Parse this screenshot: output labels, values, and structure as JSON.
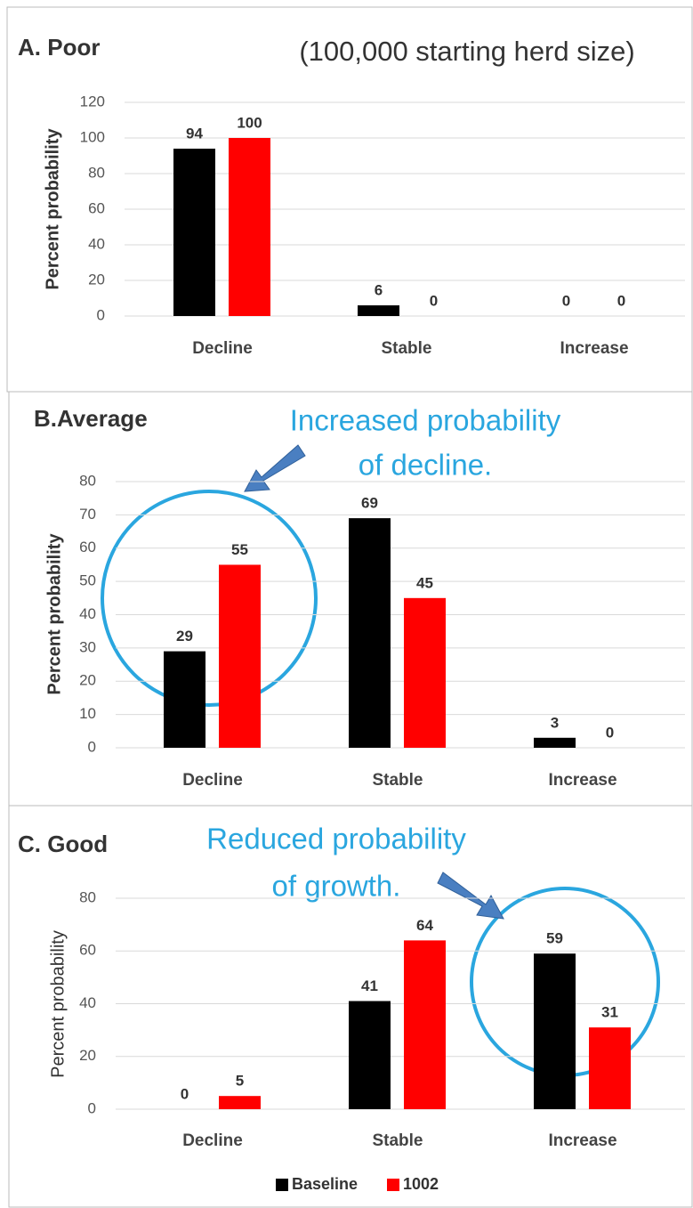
{
  "chart_data": [
    {
      "type": "bar",
      "title": "A. Poor",
      "subtitle": "(100,000 starting herd size)",
      "y_label": "Percent probability",
      "categories": [
        "Decline",
        "Stable",
        "Increase"
      ],
      "series": [
        {
          "color": "#000000",
          "values": [
            94,
            6,
            0
          ]
        },
        {
          "color": "#ff0000",
          "values": [
            100,
            0,
            0
          ]
        }
      ],
      "ylim": [
        0,
        120
      ],
      "yticks": [
        0,
        20,
        40,
        60,
        80,
        100,
        120
      ],
      "grid": true
    },
    {
      "type": "bar",
      "title": "B.Average",
      "annotation": [
        "Increased probability",
        "of decline."
      ],
      "y_label": "Percent probability",
      "categories": [
        "Decline",
        "Stable",
        "Increase"
      ],
      "series": [
        {
          "color": "#000000",
          "values": [
            29,
            69,
            3
          ]
        },
        {
          "color": "#ff0000",
          "values": [
            55,
            45,
            0
          ]
        }
      ],
      "ylim": [
        0,
        80
      ],
      "yticks": [
        0,
        10,
        20,
        30,
        40,
        50,
        60,
        70,
        80
      ],
      "grid": true
    },
    {
      "type": "bar",
      "title": "C. Good",
      "annotation": [
        "Reduced probability",
        "of growth."
      ],
      "y_label": "Percent probability",
      "categories": [
        "Decline",
        "Stable",
        "Increase"
      ],
      "series": [
        {
          "name": "Baseline",
          "color": "#000000",
          "values": [
            0,
            41,
            59
          ]
        },
        {
          "name": "1002",
          "color": "#ff0000",
          "values": [
            5,
            64,
            31
          ]
        }
      ],
      "ylim": [
        0,
        80
      ],
      "yticks": [
        0,
        20,
        40,
        60,
        80
      ],
      "grid": true,
      "legend": "bottom"
    }
  ]
}
